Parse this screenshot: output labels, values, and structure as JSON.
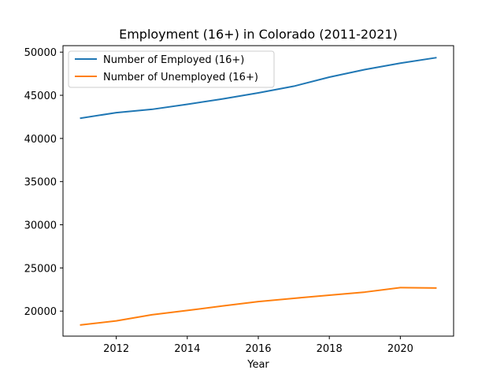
{
  "chart_data": {
    "type": "line",
    "title": "Employment (16+) in Colorado (2011-2021)",
    "xlabel": "Year",
    "ylabel": "",
    "x": [
      2011,
      2012,
      2013,
      2014,
      2015,
      2016,
      2017,
      2018,
      2019,
      2020,
      2021
    ],
    "xlim": [
      2010.5,
      2021.5
    ],
    "ylim": [
      17100,
      50750
    ],
    "xticks": [
      2012,
      2014,
      2016,
      2018,
      2020
    ],
    "yticks": [
      20000,
      25000,
      30000,
      35000,
      40000,
      45000,
      50000
    ],
    "xtick_labels": [
      "2012",
      "2014",
      "2016",
      "2018",
      "2020"
    ],
    "ytick_labels": [
      "20000",
      "25000",
      "30000",
      "35000",
      "40000",
      "45000",
      "50000"
    ],
    "grid": false,
    "legend_position": "top-left",
    "series": [
      {
        "name": "Number of Employed (16+)",
        "color": "#1f77b4",
        "values": [
          42350,
          42990,
          43370,
          43960,
          44580,
          45280,
          46050,
          47100,
          47980,
          48720,
          49350
        ]
      },
      {
        "name": "Number of Unemployed (16+)",
        "color": "#ff7f0e",
        "values": [
          18400,
          18870,
          19570,
          20070,
          20600,
          21100,
          21480,
          21840,
          22200,
          22720,
          22680
        ]
      }
    ]
  }
}
